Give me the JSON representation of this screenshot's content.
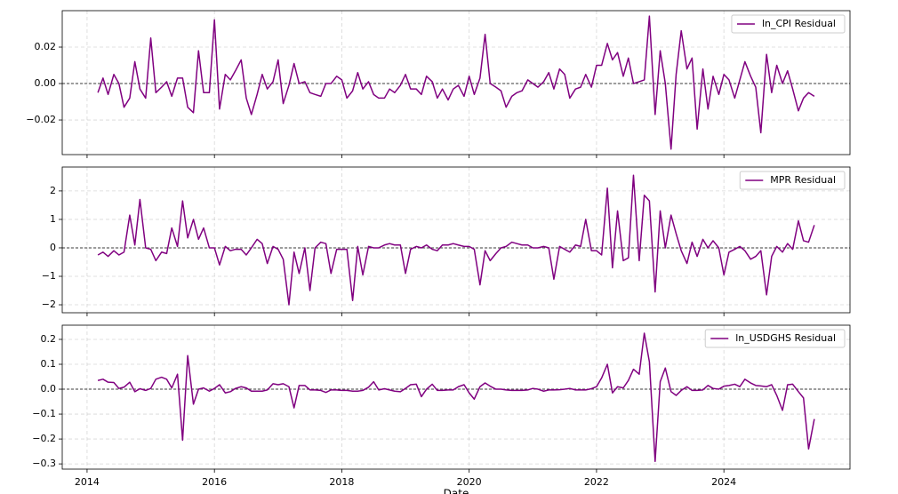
{
  "chart_data": [
    {
      "type": "line",
      "x": [
        2014.17,
        2014.25,
        2014.33,
        2014.42,
        2014.5,
        2014.58,
        2014.67,
        2014.75,
        2014.83,
        2014.92,
        2015,
        2015.08,
        2015.17,
        2015.25,
        2015.33,
        2015.42,
        2015.5,
        2015.58,
        2015.67,
        2015.75,
        2015.83,
        2015.92,
        2016,
        2016.08,
        2016.17,
        2016.25,
        2016.33,
        2016.42,
        2016.5,
        2016.58,
        2016.67,
        2016.75,
        2016.83,
        2016.92,
        2017,
        2017.08,
        2017.17,
        2017.25,
        2017.33,
        2017.42,
        2017.5,
        2017.58,
        2017.67,
        2017.75,
        2017.83,
        2017.92,
        2018,
        2018.08,
        2018.17,
        2018.25,
        2018.33,
        2018.42,
        2018.5,
        2018.58,
        2018.67,
        2018.75,
        2018.83,
        2018.92,
        2019,
        2019.08,
        2019.17,
        2019.25,
        2019.33,
        2019.42,
        2019.5,
        2019.58,
        2019.67,
        2019.75,
        2019.83,
        2019.92,
        2020,
        2020.08,
        2020.17,
        2020.25,
        2020.33,
        2020.42,
        2020.5,
        2020.58,
        2020.67,
        2020.75,
        2020.83,
        2020.92,
        2021,
        2021.08,
        2021.17,
        2021.25,
        2021.33,
        2021.42,
        2021.5,
        2021.58,
        2021.67,
        2021.75,
        2021.83,
        2021.92,
        2022,
        2022.08,
        2022.17,
        2022.25,
        2022.33,
        2022.42,
        2022.5,
        2022.58,
        2022.67,
        2022.75,
        2022.83,
        2022.92,
        2023,
        2023.08,
        2023.17,
        2023.25,
        2023.33,
        2023.42,
        2023.5,
        2023.58,
        2023.67,
        2023.75,
        2023.83,
        2023.92,
        2024,
        2024.08,
        2024.17,
        2024.25,
        2024.33,
        2024.42,
        2024.5,
        2024.58,
        2024.67,
        2024.75,
        2024.83,
        2024.92,
        2025,
        2025.08,
        2025.17,
        2025.25,
        2025.33,
        2025.42
      ],
      "series": [
        {
          "name": "ln_CPI Residual",
          "color": "#800080",
          "values": [
            -0.005,
            0.003,
            -0.006,
            0.005,
            0,
            -0.013,
            -0.008,
            0.012,
            -0.003,
            -0.008,
            0.025,
            -0.005,
            -0.002,
            0.001,
            -0.007,
            0.003,
            0.003,
            -0.013,
            -0.016,
            0.018,
            -0.005,
            -0.005,
            0.035,
            -0.014,
            0.005,
            0.002,
            0.007,
            0.013,
            -0.008,
            -0.017,
            -0.006,
            0.005,
            -0.003,
            0.001,
            0.013,
            -0.011,
            -0.001,
            0.011,
            0,
            0.001,
            -0.005,
            -0.006,
            -0.007,
            0,
            0,
            0.004,
            0.002,
            -0.008,
            -0.004,
            0.006,
            -0.003,
            0.001,
            -0.006,
            -0.008,
            -0.008,
            -0.003,
            -0.005,
            -0.001,
            0.005,
            -0.003,
            -0.003,
            -0.006,
            0.004,
            0.001,
            -0.008,
            -0.003,
            -0.009,
            -0.003,
            -0.001,
            -0.007,
            0.004,
            -0.006,
            0.003,
            0.027,
            0,
            -0.002,
            -0.004,
            -0.013,
            -0.007,
            -0.005,
            -0.004,
            0.002,
            0,
            -0.002,
            0.001,
            0.006,
            -0.003,
            0.008,
            0.005,
            -0.008,
            -0.003,
            -0.002,
            0.005,
            -0.002,
            0.01,
            0.01,
            0.022,
            0.013,
            0.017,
            0.004,
            0.014,
            0,
            0.001,
            0.002,
            0.037,
            -0.017,
            0.018,
            0,
            -0.036,
            0.005,
            0.029,
            0.008,
            0.014,
            -0.025,
            0.008,
            -0.014,
            0.004,
            -0.006,
            0.005,
            0.002,
            -0.008,
            0.002,
            0.012,
            0.004,
            -0.002,
            -0.027,
            0.016,
            -0.005,
            0.01,
            0,
            0.007,
            -0.003,
            -0.015,
            -0.008,
            -0.005,
            -0.007
          ]
        }
      ],
      "xlim": [
        2013.61,
        2025.98
      ],
      "ylim": [
        -0.039,
        0.04
      ],
      "yticks": [
        {
          "value": -0.02,
          "label": "−0.02"
        },
        {
          "value": 0,
          "label": "0.00"
        },
        {
          "value": 0.02,
          "label": "0.02"
        }
      ],
      "grid": true,
      "legend": "upper right"
    },
    {
      "type": "line",
      "x": [
        2014.17,
        2014.25,
        2014.33,
        2014.42,
        2014.5,
        2014.58,
        2014.67,
        2014.75,
        2014.83,
        2014.92,
        2015,
        2015.08,
        2015.17,
        2015.25,
        2015.33,
        2015.42,
        2015.5,
        2015.58,
        2015.67,
        2015.75,
        2015.83,
        2015.92,
        2016,
        2016.08,
        2016.17,
        2016.25,
        2016.33,
        2016.42,
        2016.5,
        2016.58,
        2016.67,
        2016.75,
        2016.83,
        2016.92,
        2017,
        2017.08,
        2017.17,
        2017.25,
        2017.33,
        2017.42,
        2017.5,
        2017.58,
        2017.67,
        2017.75,
        2017.83,
        2017.92,
        2018,
        2018.08,
        2018.17,
        2018.25,
        2018.33,
        2018.42,
        2018.5,
        2018.58,
        2018.67,
        2018.75,
        2018.83,
        2018.92,
        2019,
        2019.08,
        2019.17,
        2019.25,
        2019.33,
        2019.42,
        2019.5,
        2019.58,
        2019.67,
        2019.75,
        2019.83,
        2019.92,
        2020,
        2020.08,
        2020.17,
        2020.25,
        2020.33,
        2020.42,
        2020.5,
        2020.58,
        2020.67,
        2020.75,
        2020.83,
        2020.92,
        2021,
        2021.08,
        2021.17,
        2021.25,
        2021.33,
        2021.42,
        2021.5,
        2021.58,
        2021.67,
        2021.75,
        2021.83,
        2021.92,
        2022,
        2022.08,
        2022.17,
        2022.25,
        2022.33,
        2022.42,
        2022.5,
        2022.58,
        2022.67,
        2022.75,
        2022.83,
        2022.92,
        2023,
        2023.08,
        2023.17,
        2023.25,
        2023.33,
        2023.42,
        2023.5,
        2023.58,
        2023.67,
        2023.75,
        2023.83,
        2023.92,
        2024,
        2024.08,
        2024.17,
        2024.25,
        2024.33,
        2024.42,
        2024.5,
        2024.58,
        2024.67,
        2024.75,
        2024.83,
        2024.92,
        2025,
        2025.08,
        2025.17,
        2025.25,
        2025.33,
        2025.42
      ],
      "series": [
        {
          "name": "MPR Residual",
          "color": "#800080",
          "values": [
            -0.25,
            -0.15,
            -0.3,
            -0.1,
            -0.25,
            -0.15,
            1.15,
            0.1,
            1.7,
            0,
            -0.05,
            -0.45,
            -0.15,
            -0.2,
            0.7,
            0.05,
            1.65,
            0.35,
            1.0,
            0.3,
            0.7,
            0,
            0,
            -0.6,
            0.05,
            -0.1,
            -0.05,
            -0.05,
            -0.25,
            0,
            0.3,
            0.15,
            -0.55,
            0.05,
            -0.05,
            -0.4,
            -2.0,
            -0.15,
            -0.9,
            0,
            -1.5,
            0,
            0.2,
            0.15,
            -0.9,
            -0.05,
            -0.05,
            -0.05,
            -1.85,
            0.05,
            -0.95,
            0.05,
            0,
            0,
            0.1,
            0.15,
            0.1,
            0.1,
            -0.9,
            -0.05,
            0.05,
            0,
            0.1,
            -0.05,
            -0.1,
            0.1,
            0.1,
            0.15,
            0.1,
            0.05,
            0.05,
            -0.05,
            -1.3,
            -0.1,
            -0.45,
            -0.2,
            0,
            0.05,
            0.2,
            0.15,
            0.1,
            0.1,
            0,
            0,
            0.05,
            0,
            -1.1,
            0.05,
            -0.05,
            -0.15,
            0.1,
            0.05,
            1.0,
            -0.1,
            -0.1,
            -0.25,
            2.1,
            -0.7,
            1.3,
            -0.45,
            -0.35,
            2.55,
            -0.45,
            1.85,
            1.65,
            -1.55,
            1.3,
            0,
            1.15,
            0.5,
            -0.1,
            -0.55,
            0.2,
            -0.3,
            0.3,
            0,
            0.25,
            0,
            -0.95,
            -0.15,
            -0.05,
            0.05,
            -0.1,
            -0.4,
            -0.3,
            -0.1,
            -1.65,
            -0.3,
            0.05,
            -0.15,
            0.15,
            -0.05,
            0.95,
            0.25,
            0.2,
            0.8
          ]
        }
      ],
      "xlim": [
        2013.61,
        2025.98
      ],
      "ylim": [
        -2.28,
        2.84
      ],
      "yticks": [
        {
          "value": -2,
          "label": "−2"
        },
        {
          "value": -1,
          "label": "−1"
        },
        0,
        1,
        2
      ],
      "grid": true,
      "legend": "upper right"
    },
    {
      "type": "line",
      "x": [
        2014.17,
        2014.25,
        2014.33,
        2014.42,
        2014.5,
        2014.58,
        2014.67,
        2014.75,
        2014.83,
        2014.92,
        2015,
        2015.08,
        2015.17,
        2015.25,
        2015.33,
        2015.42,
        2015.5,
        2015.58,
        2015.67,
        2015.75,
        2015.83,
        2015.92,
        2016,
        2016.08,
        2016.17,
        2016.25,
        2016.33,
        2016.42,
        2016.5,
        2016.58,
        2016.67,
        2016.75,
        2016.83,
        2016.92,
        2017,
        2017.08,
        2017.17,
        2017.25,
        2017.33,
        2017.42,
        2017.5,
        2017.58,
        2017.67,
        2017.75,
        2017.83,
        2017.92,
        2018,
        2018.08,
        2018.17,
        2018.25,
        2018.33,
        2018.42,
        2018.5,
        2018.58,
        2018.67,
        2018.75,
        2018.83,
        2018.92,
        2019,
        2019.08,
        2019.17,
        2019.25,
        2019.33,
        2019.42,
        2019.5,
        2019.58,
        2019.67,
        2019.75,
        2019.83,
        2019.92,
        2020,
        2020.08,
        2020.17,
        2020.25,
        2020.33,
        2020.42,
        2020.5,
        2020.58,
        2020.67,
        2020.75,
        2020.83,
        2020.92,
        2021,
        2021.08,
        2021.17,
        2021.25,
        2021.33,
        2021.42,
        2021.5,
        2021.58,
        2021.67,
        2021.75,
        2021.83,
        2021.92,
        2022,
        2022.08,
        2022.17,
        2022.25,
        2022.33,
        2022.42,
        2022.5,
        2022.58,
        2022.67,
        2022.75,
        2022.83,
        2022.92,
        2023,
        2023.08,
        2023.17,
        2023.25,
        2023.33,
        2023.42,
        2023.5,
        2023.58,
        2023.67,
        2023.75,
        2023.83,
        2023.92,
        2024,
        2024.08,
        2024.17,
        2024.25,
        2024.33,
        2024.42,
        2024.5,
        2024.58,
        2024.67,
        2024.75,
        2024.83,
        2024.92,
        2025,
        2025.08,
        2025.17,
        2025.25,
        2025.33,
        2025.42
      ],
      "series": [
        {
          "name": "ln_USDGHS Residual",
          "color": "#800080",
          "values": [
            0.035,
            0.04,
            0.028,
            0.027,
            0.003,
            0.008,
            0.028,
            -0.01,
            0.002,
            -0.005,
            0.003,
            0.04,
            0.048,
            0.04,
            0.005,
            0.06,
            -0.205,
            0.135,
            -0.06,
            0,
            0.005,
            -0.008,
            0.003,
            0.018,
            -0.015,
            -0.01,
            0.003,
            0.01,
            0.005,
            -0.008,
            -0.008,
            -0.008,
            -0.003,
            0.022,
            0.018,
            0.022,
            0.01,
            -0.075,
            0.015,
            0.015,
            -0.003,
            -0.003,
            -0.005,
            -0.013,
            -0.003,
            -0.003,
            -0.005,
            -0.005,
            -0.008,
            -0.008,
            -0.005,
            0.008,
            0.03,
            -0.003,
            0.002,
            -0.003,
            -0.008,
            -0.01,
            0.003,
            0.018,
            0.02,
            -0.03,
            0,
            0.02,
            -0.005,
            -0.005,
            -0.003,
            -0.003,
            0.01,
            0.018,
            -0.015,
            -0.04,
            0.01,
            0.025,
            0.012,
            0,
            0,
            -0.003,
            -0.005,
            -0.005,
            -0.005,
            -0.003,
            0.003,
            0,
            -0.008,
            -0.003,
            -0.003,
            -0.002,
            0,
            0.003,
            -0.003,
            -0.003,
            -0.003,
            0.002,
            0.01,
            0.045,
            0.1,
            -0.015,
            0.01,
            0.005,
            0.035,
            0.08,
            0.06,
            0.225,
            0.11,
            -0.29,
            0.03,
            0.085,
            -0.01,
            -0.025,
            -0.005,
            0.01,
            -0.005,
            -0.005,
            -0.003,
            0.015,
            0.003,
            0,
            0.012,
            0.015,
            0.02,
            0.01,
            0.04,
            0.025,
            0.015,
            0.013,
            0.01,
            0.018,
            -0.025,
            -0.085,
            0.018,
            0.02,
            -0.01,
            -0.035,
            -0.24,
            -0.12
          ]
        }
      ],
      "xlim": [
        2013.61,
        2025.98
      ],
      "xticks": [
        2014,
        2016,
        2018,
        2020,
        2022,
        2024
      ],
      "ylim": [
        -0.321,
        0.257
      ],
      "yticks": [
        {
          "value": -0.3,
          "label": "−0.3"
        },
        {
          "value": -0.2,
          "label": "−0.2"
        },
        {
          "value": -0.1,
          "label": "−0.1"
        },
        {
          "value": 0,
          "label": "0.0"
        },
        {
          "value": 0.1,
          "label": "0.1"
        },
        {
          "value": 0.2,
          "label": "0.2"
        }
      ],
      "xlabel": "Date",
      "grid": true,
      "legend": "upper right"
    }
  ]
}
